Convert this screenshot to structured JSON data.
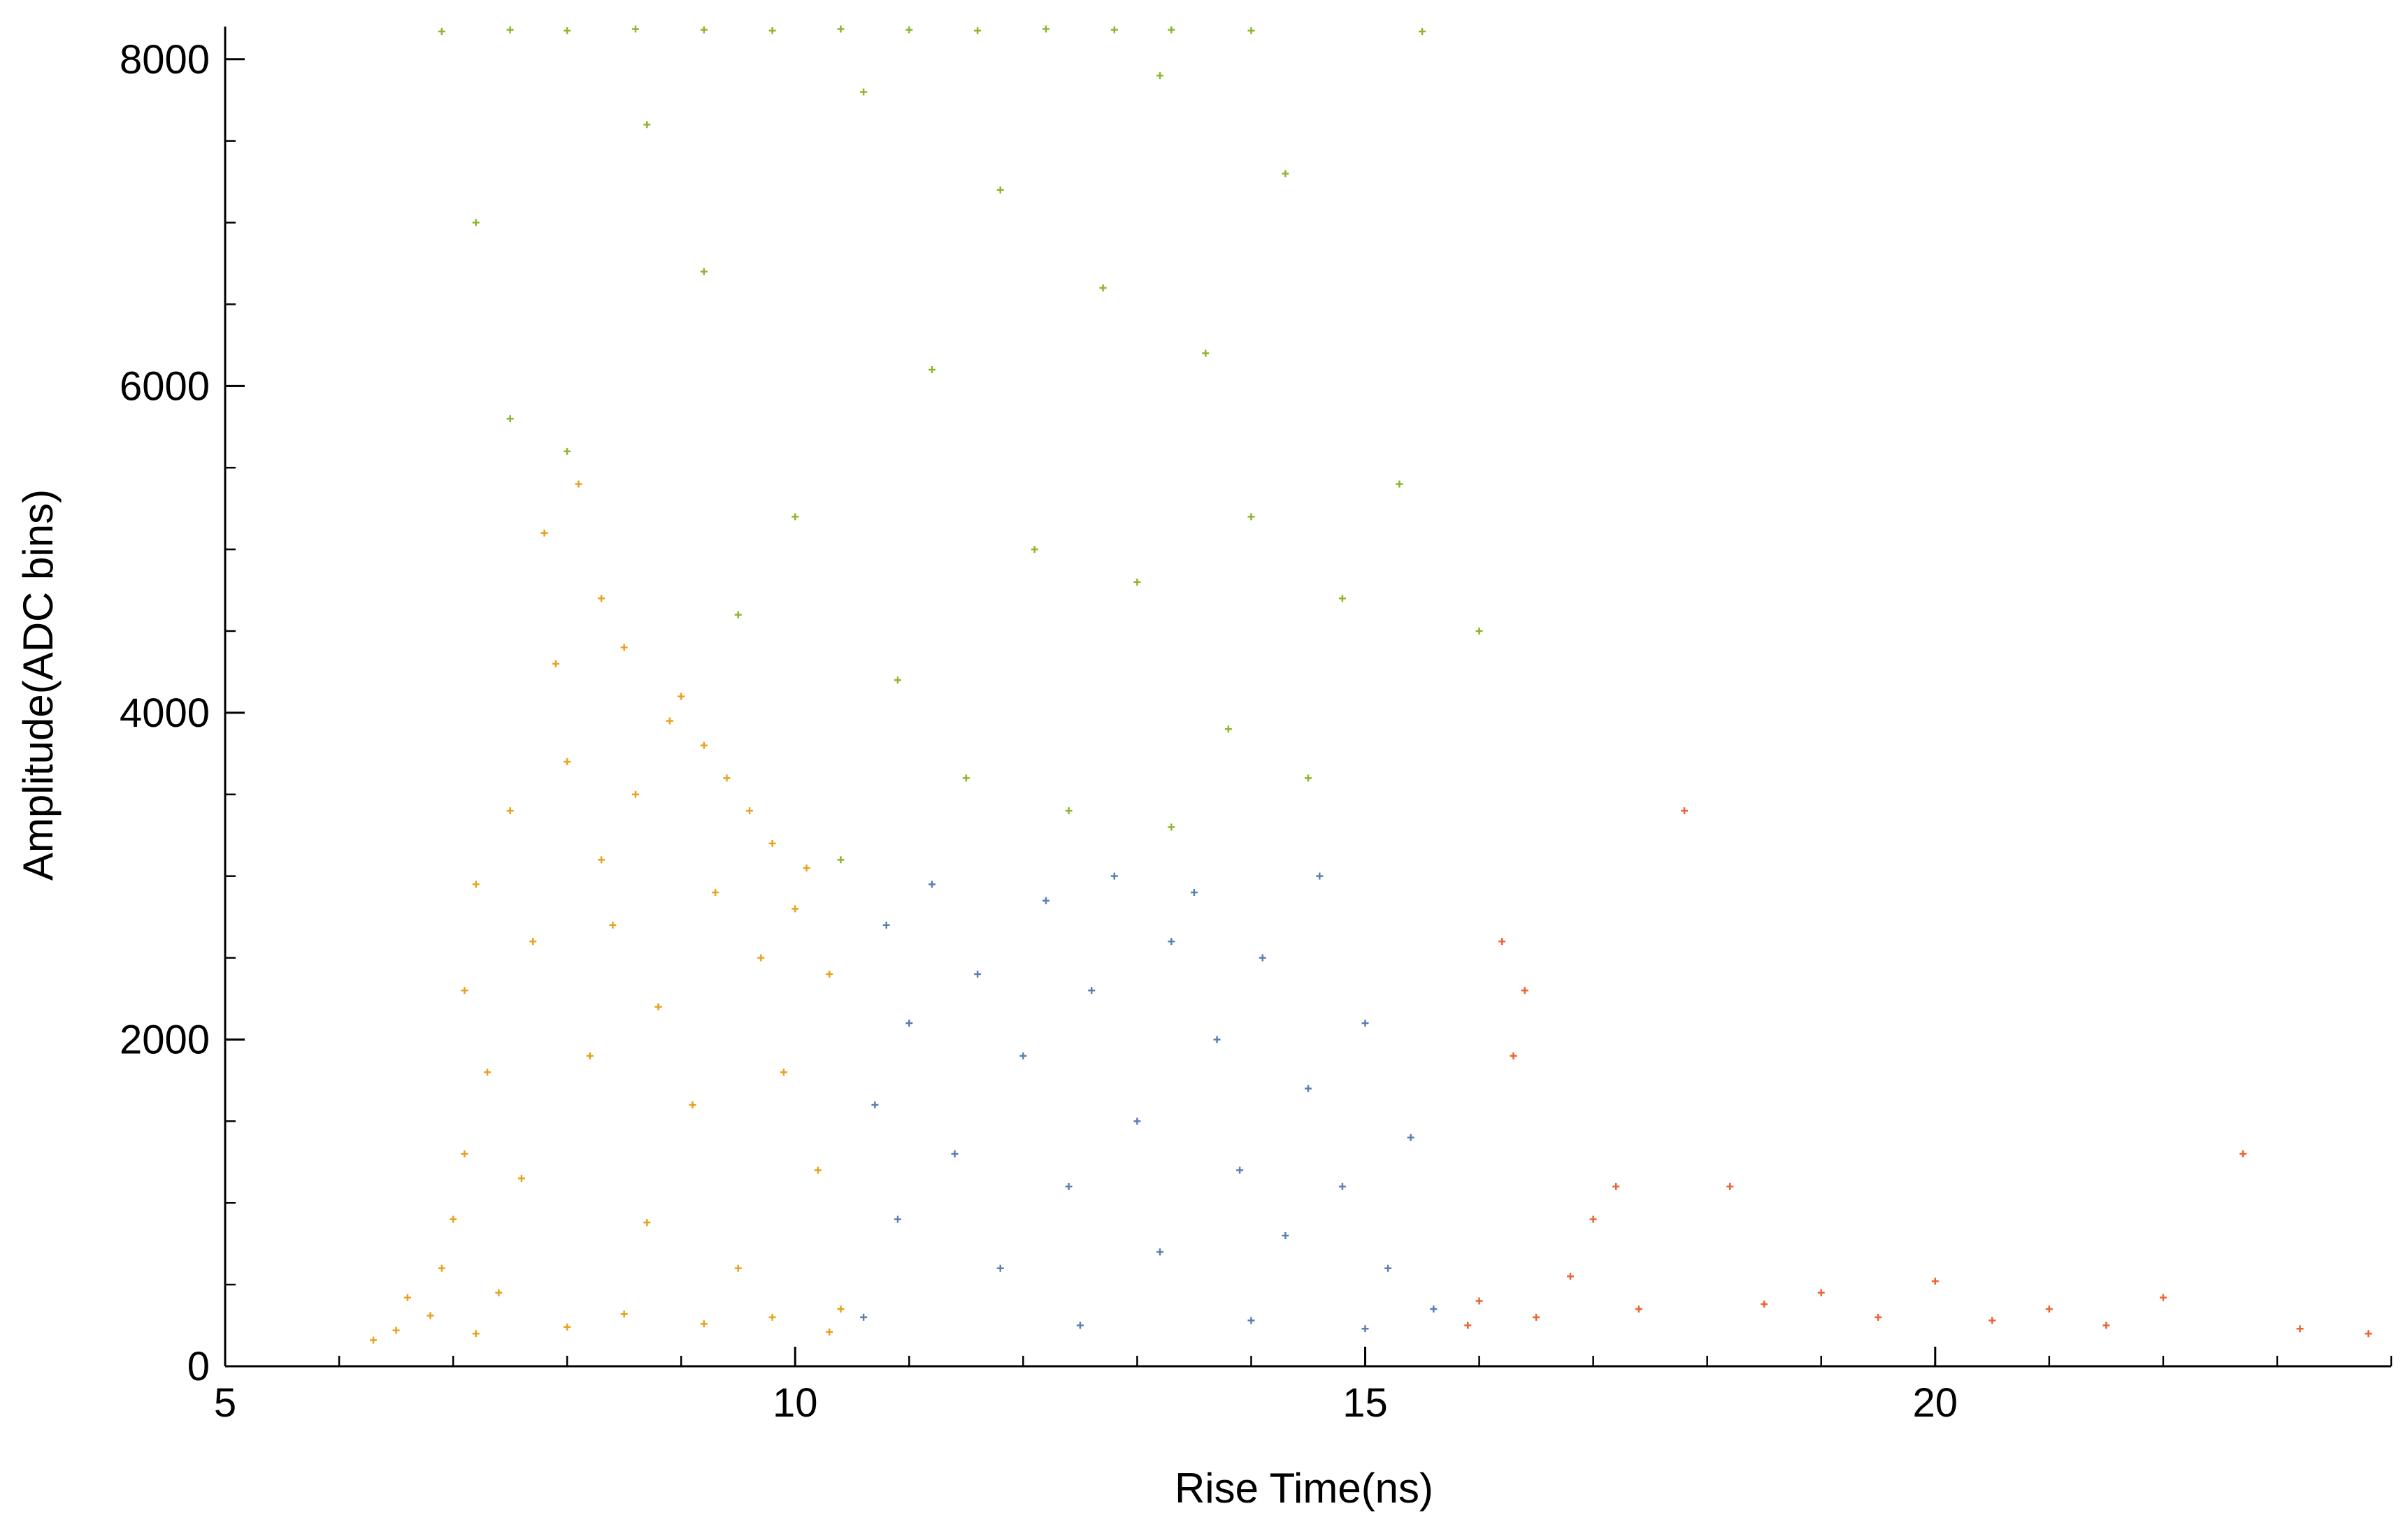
{
  "chart_data": {
    "type": "scatter",
    "title": "",
    "xlabel": "Rise Time(ns)",
    "ylabel": "Amplitude(ADC bins)",
    "xlim": [
      5,
      24
    ],
    "ylim": [
      0,
      8200
    ],
    "x_ticks": [
      5,
      10,
      15,
      20
    ],
    "y_ticks": [
      0,
      2000,
      4000,
      6000,
      8000
    ],
    "x_tick_labels": [
      "5",
      "10",
      "15",
      "20"
    ],
    "y_tick_labels": [
      "0",
      "2000",
      "4000",
      "6000",
      "8000"
    ],
    "grid": false,
    "legend": "none",
    "series": [
      {
        "color": "#e8a21e",
        "points": [
          [
            6.3,
            160
          ],
          [
            6.5,
            220
          ],
          [
            6.6,
            420
          ],
          [
            6.8,
            310
          ],
          [
            6.9,
            600
          ],
          [
            7.0,
            900
          ],
          [
            7.1,
            1300
          ],
          [
            7.1,
            2300
          ],
          [
            7.2,
            2950
          ],
          [
            7.3,
            1800
          ],
          [
            7.4,
            450
          ],
          [
            7.5,
            3400
          ],
          [
            7.6,
            1150
          ],
          [
            7.7,
            2600
          ],
          [
            7.8,
            5100
          ],
          [
            7.9,
            4300
          ],
          [
            8.0,
            3700
          ],
          [
            8.1,
            5400
          ],
          [
            8.2,
            1900
          ],
          [
            8.3,
            3100
          ],
          [
            8.3,
            4700
          ],
          [
            8.4,
            2700
          ],
          [
            8.5,
            4400
          ],
          [
            8.6,
            3500
          ],
          [
            8.7,
            880
          ],
          [
            8.8,
            2200
          ],
          [
            8.9,
            3950
          ],
          [
            9.0,
            4100
          ],
          [
            9.1,
            1600
          ],
          [
            9.2,
            3800
          ],
          [
            9.3,
            2900
          ],
          [
            9.4,
            3600
          ],
          [
            9.5,
            600
          ],
          [
            9.6,
            3400
          ],
          [
            9.7,
            2500
          ],
          [
            9.8,
            3200
          ],
          [
            9.9,
            1800
          ],
          [
            10.0,
            2800
          ],
          [
            10.1,
            3050
          ],
          [
            10.2,
            1200
          ],
          [
            10.3,
            2400
          ],
          [
            10.4,
            350
          ],
          [
            8.0,
            240
          ],
          [
            8.5,
            320
          ],
          [
            9.2,
            260
          ],
          [
            9.8,
            300
          ],
          [
            10.3,
            210
          ],
          [
            7.2,
            200
          ]
        ]
      },
      {
        "color": "#5b7fb3",
        "points": [
          [
            10.6,
            300
          ],
          [
            10.7,
            1600
          ],
          [
            10.8,
            2700
          ],
          [
            10.9,
            900
          ],
          [
            11.0,
            2100
          ],
          [
            11.2,
            2950
          ],
          [
            11.4,
            1300
          ],
          [
            11.6,
            2400
          ],
          [
            11.8,
            600
          ],
          [
            12.0,
            1900
          ],
          [
            12.2,
            2850
          ],
          [
            12.4,
            1100
          ],
          [
            12.6,
            2300
          ],
          [
            12.8,
            3000
          ],
          [
            13.0,
            1500
          ],
          [
            13.2,
            700
          ],
          [
            13.3,
            2600
          ],
          [
            13.5,
            2900
          ],
          [
            13.7,
            2000
          ],
          [
            13.9,
            1200
          ],
          [
            14.1,
            2500
          ],
          [
            14.3,
            800
          ],
          [
            14.5,
            1700
          ],
          [
            14.6,
            3000
          ],
          [
            14.8,
            1100
          ],
          [
            15.0,
            2100
          ],
          [
            15.2,
            600
          ],
          [
            15.4,
            1400
          ],
          [
            15.6,
            350
          ],
          [
            12.5,
            250
          ],
          [
            14.0,
            280
          ],
          [
            15.0,
            230
          ]
        ]
      },
      {
        "color": "#8fb52d",
        "points": [
          [
            6.9,
            8170
          ],
          [
            7.5,
            8180
          ],
          [
            8.0,
            8175
          ],
          [
            8.6,
            8185
          ],
          [
            9.2,
            8180
          ],
          [
            9.8,
            8175
          ],
          [
            10.4,
            8185
          ],
          [
            11.0,
            8180
          ],
          [
            11.6,
            8175
          ],
          [
            12.2,
            8185
          ],
          [
            12.8,
            8180
          ],
          [
            13.3,
            8180
          ],
          [
            14.0,
            8175
          ],
          [
            15.5,
            8170
          ],
          [
            7.2,
            7000
          ],
          [
            7.5,
            5800
          ],
          [
            8.0,
            5600
          ],
          [
            8.7,
            7600
          ],
          [
            9.2,
            6700
          ],
          [
            9.5,
            4600
          ],
          [
            10.0,
            5200
          ],
          [
            10.4,
            3100
          ],
          [
            10.6,
            7800
          ],
          [
            10.9,
            4200
          ],
          [
            11.2,
            6100
          ],
          [
            11.5,
            3600
          ],
          [
            11.8,
            7200
          ],
          [
            12.1,
            5000
          ],
          [
            12.4,
            3400
          ],
          [
            12.7,
            6600
          ],
          [
            13.0,
            4800
          ],
          [
            13.2,
            7900
          ],
          [
            13.3,
            3300
          ],
          [
            13.6,
            6200
          ],
          [
            14.0,
            5200
          ],
          [
            14.3,
            7300
          ],
          [
            14.8,
            4700
          ],
          [
            15.3,
            5400
          ],
          [
            16.0,
            4500
          ],
          [
            13.8,
            3900
          ],
          [
            14.5,
            3600
          ]
        ]
      },
      {
        "color": "#f06232",
        "points": [
          [
            15.9,
            250
          ],
          [
            16.0,
            400
          ],
          [
            16.2,
            2600
          ],
          [
            16.3,
            1900
          ],
          [
            16.4,
            2300
          ],
          [
            16.5,
            300
          ],
          [
            16.8,
            550
          ],
          [
            17.0,
            900
          ],
          [
            17.2,
            1100
          ],
          [
            17.4,
            350
          ],
          [
            17.8,
            3400
          ],
          [
            18.2,
            1100
          ],
          [
            18.5,
            380
          ],
          [
            19.0,
            450
          ],
          [
            19.5,
            300
          ],
          [
            20.0,
            520
          ],
          [
            20.5,
            280
          ],
          [
            21.0,
            350
          ],
          [
            21.5,
            250
          ],
          [
            22.0,
            420
          ],
          [
            22.7,
            1300
          ],
          [
            23.2,
            230
          ],
          [
            23.8,
            200
          ]
        ]
      }
    ]
  }
}
